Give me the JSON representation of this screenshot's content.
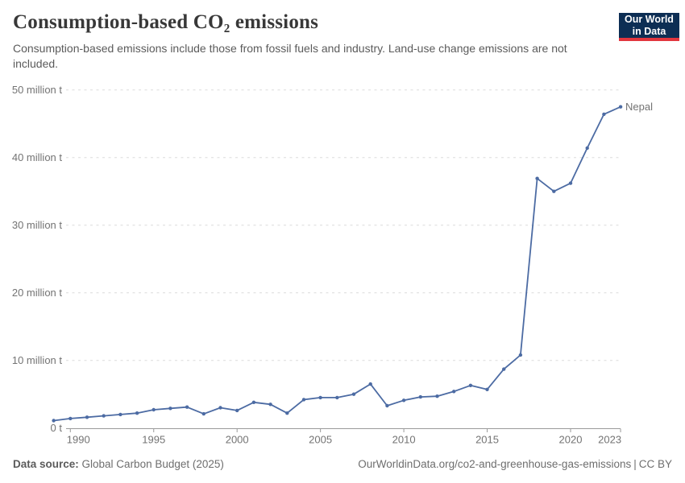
{
  "header": {
    "title": "Consumption-based CO₂ emissions",
    "subtitle": "Consumption-based emissions include those from fossil fuels and industry. Land-use change emissions are not included.",
    "logo": {
      "line1": "Our World",
      "line2": "in Data",
      "bg_color": "#0d2e54",
      "accent_color": "#e2363e"
    }
  },
  "chart_data": {
    "type": "line",
    "title": "Consumption-based CO₂ emissions",
    "unit": "million t",
    "x": [
      1989,
      1990,
      1991,
      1992,
      1993,
      1994,
      1995,
      1996,
      1997,
      1998,
      1999,
      2000,
      2001,
      2002,
      2003,
      2004,
      2005,
      2006,
      2007,
      2008,
      2009,
      2010,
      2011,
      2012,
      2013,
      2014,
      2015,
      2016,
      2017,
      2018,
      2019,
      2020,
      2021,
      2022,
      2023
    ],
    "series": [
      {
        "name": "Nepal",
        "values": [
          1.1,
          1.4,
          1.6,
          1.8,
          2.0,
          2.2,
          2.7,
          2.9,
          3.1,
          2.1,
          3.0,
          2.6,
          3.8,
          3.5,
          2.2,
          4.2,
          4.5,
          4.5,
          5.0,
          6.5,
          3.3,
          4.1,
          4.6,
          4.7,
          5.4,
          6.3,
          5.7,
          8.7,
          10.8,
          36.9,
          35.0,
          36.2,
          41.4,
          46.4,
          47.5
        ]
      }
    ],
    "xlabel": "",
    "ylabel": "",
    "xlim": [
      1989,
      2023
    ],
    "ylim": [
      0,
      50
    ],
    "xticks": [
      1990,
      1995,
      2000,
      2005,
      2010,
      2015,
      2020,
      2023
    ],
    "yticks": [
      0,
      10,
      20,
      30,
      40,
      50
    ],
    "ytick_labels": [
      "0 t",
      "10 million t",
      "20 million t",
      "30 million t",
      "40 million t",
      "50 million t"
    ],
    "grid": "horizontal-dashed",
    "legend_position": "end-of-line",
    "line_color": "#4c6ba3",
    "series_label_color": "#3a5d9c",
    "grid_color": "#dcdcdc",
    "axis_color": "#9a9a9a",
    "tick_label_color": "#737373"
  },
  "footer": {
    "source_label": "Data source:",
    "source_value": " Global Carbon Budget (2025)",
    "link": "OurWorldinData.org/co2-and-greenhouse-gas-emissions",
    "divider": "|",
    "license": "CC BY"
  }
}
